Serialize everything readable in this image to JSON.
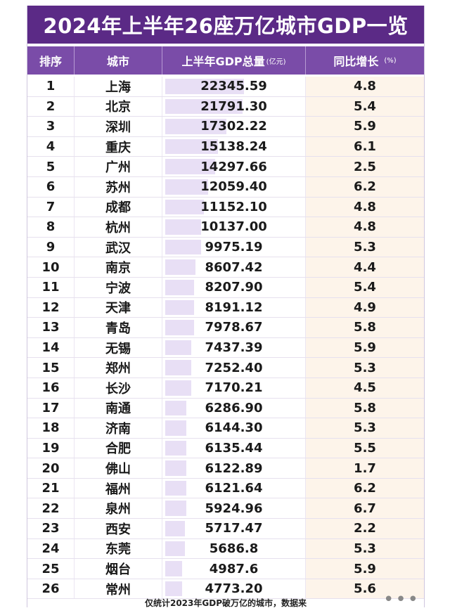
{
  "title": "2024年上半年26座万亿城市GDP一览",
  "header": {
    "rank": "排序",
    "city": "城市",
    "gdp": "上半年GDP总量",
    "gdp_unit": "(亿元)",
    "growth": "同比增长",
    "growth_unit": "(%)"
  },
  "rows": [
    {
      "rank": "1",
      "city": "上海",
      "gdp": "22345.59",
      "growth": "4.8"
    },
    {
      "rank": "2",
      "city": "北京",
      "gdp": "21791.30",
      "growth": "5.4"
    },
    {
      "rank": "3",
      "city": "深圳",
      "gdp": "17302.22",
      "growth": "5.9"
    },
    {
      "rank": "4",
      "city": "重庆",
      "gdp": "15138.24",
      "growth": "6.1"
    },
    {
      "rank": "5",
      "city": "广州",
      "gdp": "14297.66",
      "growth": "2.5"
    },
    {
      "rank": "6",
      "city": "苏州",
      "gdp": "12059.40",
      "growth": "6.2"
    },
    {
      "rank": "7",
      "city": "成都",
      "gdp": "11152.10",
      "growth": "4.8"
    },
    {
      "rank": "8",
      "city": "杭州",
      "gdp": "10137.00",
      "growth": "4.8"
    },
    {
      "rank": "9",
      "city": "武汉",
      "gdp": "9975.19",
      "growth": "5.3"
    },
    {
      "rank": "10",
      "city": "南京",
      "gdp": "8607.42",
      "growth": "4.4"
    },
    {
      "rank": "11",
      "city": "宁波",
      "gdp": "8207.90",
      "growth": "5.4"
    },
    {
      "rank": "12",
      "city": "天津",
      "gdp": "8191.12",
      "growth": "4.9"
    },
    {
      "rank": "13",
      "city": "青岛",
      "gdp": "7978.67",
      "growth": "5.8"
    },
    {
      "rank": "14",
      "city": "无锡",
      "gdp": "7437.39",
      "growth": "5.9"
    },
    {
      "rank": "15",
      "city": "郑州",
      "gdp": "7252.40",
      "growth": "5.3"
    },
    {
      "rank": "16",
      "city": "长沙",
      "gdp": "7170.21",
      "growth": "4.5"
    },
    {
      "rank": "17",
      "city": "南通",
      "gdp": "6286.90",
      "growth": "5.8"
    },
    {
      "rank": "18",
      "city": "济南",
      "gdp": "6144.30",
      "growth": "5.3"
    },
    {
      "rank": "19",
      "city": "合肥",
      "gdp": "6135.44",
      "growth": "5.5"
    },
    {
      "rank": "20",
      "city": "佛山",
      "gdp": "6122.89",
      "growth": "1.7"
    },
    {
      "rank": "21",
      "city": "福州",
      "gdp": "6121.64",
      "growth": "6.2"
    },
    {
      "rank": "22",
      "city": "泉州",
      "gdp": "5924.96",
      "growth": "6.7"
    },
    {
      "rank": "23",
      "city": "西安",
      "gdp": "5717.47",
      "growth": "2.2"
    },
    {
      "rank": "24",
      "city": "东莞",
      "gdp": "5686.8",
      "growth": "5.3"
    },
    {
      "rank": "25",
      "city": "烟台",
      "gdp": "4987.6",
      "growth": "5.9"
    },
    {
      "rank": "26",
      "city": "常州",
      "gdp": "4773.20",
      "growth": "5.6"
    }
  ],
  "footnote": "仅统计2023年GDP破万亿的城市，数据来",
  "more_dots": "•••",
  "colors": {
    "title_bg": "#5b2a86",
    "header_bg": "#7a4ca8",
    "gdp_bar": "#e8dff5",
    "growth_bg": "#fdf4ea"
  }
}
